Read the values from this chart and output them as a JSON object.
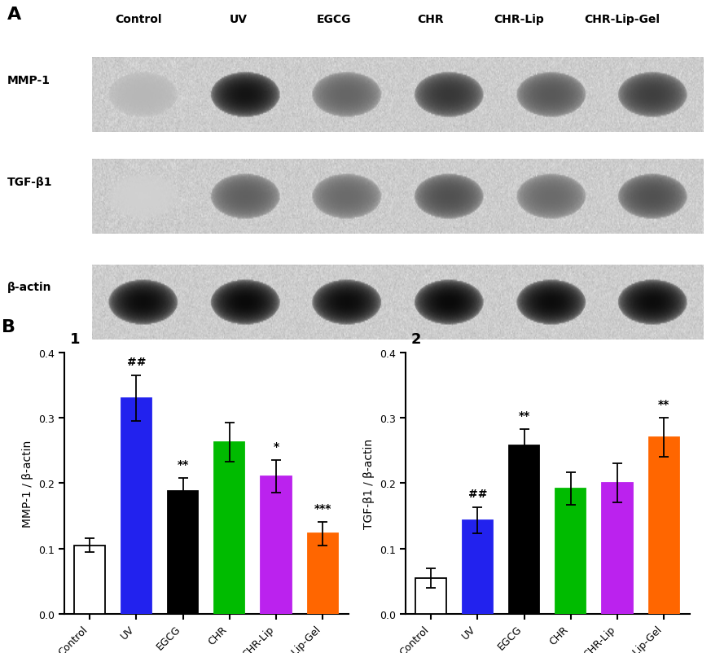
{
  "panel_A_label": "A",
  "panel_B_label": "B",
  "wb_labels": [
    "MMP-1",
    "TGF-β1",
    "β-actin"
  ],
  "wb_label_display": [
    "MMP-1",
    "TGF-β1",
    "β-actin"
  ],
  "group_labels": [
    "Control",
    "UV",
    "EGCG",
    "CHR",
    "CHR-Lip",
    "CHR-Lip-Gel"
  ],
  "mmp1_values": [
    0.105,
    0.33,
    0.188,
    0.263,
    0.21,
    0.123
  ],
  "mmp1_errors": [
    0.01,
    0.035,
    0.02,
    0.03,
    0.025,
    0.018
  ],
  "tgf_values": [
    0.055,
    0.143,
    0.258,
    0.192,
    0.2,
    0.27
  ],
  "tgf_errors": [
    0.015,
    0.02,
    0.025,
    0.025,
    0.03,
    0.03
  ],
  "bar_colors": [
    "#ffffff",
    "#2222ee",
    "#000000",
    "#00bb00",
    "#bb22ee",
    "#ff6600"
  ],
  "bar_edge_colors": [
    "#000000",
    "#2222ee",
    "#000000",
    "#00bb00",
    "#bb22ee",
    "#ff6600"
  ],
  "mmp1_annotations": [
    "",
    "##",
    "**",
    "",
    "*",
    "***"
  ],
  "tgf_annotations": [
    "",
    "##",
    "**",
    "",
    "",
    "**"
  ],
  "ylim": [
    0,
    0.4
  ],
  "yticks": [
    0.0,
    0.1,
    0.2,
    0.3,
    0.4
  ],
  "ylabel1": "MMP-1 / β-actin",
  "ylabel2": "TGF-β1 / β-actin",
  "subplot1_label": "1",
  "subplot2_label": "2",
  "background_color": "#ffffff",
  "mmp1_band_intensity": [
    0.28,
    0.92,
    0.6,
    0.78,
    0.65,
    0.75
  ],
  "tgf_band_intensity": [
    0.18,
    0.62,
    0.58,
    0.68,
    0.58,
    0.68
  ],
  "bactin_band_intensity": [
    0.95,
    0.96,
    0.95,
    0.96,
    0.95,
    0.95
  ],
  "wb_bg_color": "#c8c8c8",
  "wb_strip_bg": "#d4d4d4"
}
